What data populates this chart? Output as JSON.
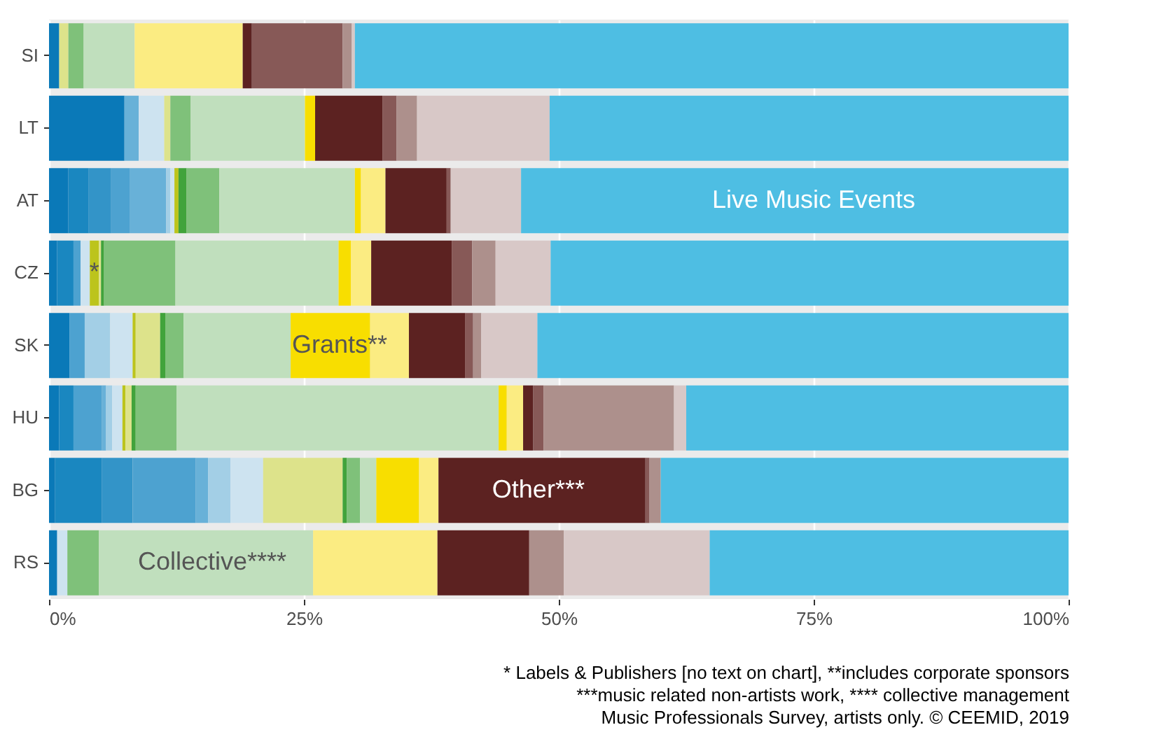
{
  "chart_data": {
    "type": "bar",
    "orientation": "horizontal",
    "stacked": true,
    "categories": [
      "SI",
      "LT",
      "AT",
      "CZ",
      "SK",
      "HU",
      "BG",
      "RS"
    ],
    "series": [
      {
        "color": "#0a79b8",
        "values": [
          1.0,
          7.4,
          1.9,
          0.8,
          2.0,
          1.0,
          0.6,
          0.8
        ]
      },
      {
        "color": "#1a87c0",
        "values": [
          null,
          null,
          2.0,
          1.6,
          null,
          1.4,
          4.6,
          null
        ]
      },
      {
        "color": "#3394c8",
        "values": [
          null,
          null,
          2.2,
          null,
          null,
          null,
          3.0,
          null
        ]
      },
      {
        "color": "#4da2d0",
        "values": [
          null,
          null,
          1.8,
          0.7,
          1.5,
          2.8,
          6.2,
          null
        ]
      },
      {
        "color": "#68b1d8",
        "values": [
          null,
          1.4,
          3.6,
          null,
          null,
          0.4,
          1.2,
          null
        ]
      },
      {
        "color": "#a3cfe6",
        "values": [
          null,
          null,
          0.4,
          null,
          2.5,
          0.6,
          2.2,
          null
        ]
      },
      {
        "color": "#cde3f0",
        "values": [
          null,
          2.5,
          0.4,
          0.9,
          2.2,
          1.0,
          3.2,
          1.0
        ]
      },
      {
        "color": "#bcc41c",
        "values": [
          null,
          null,
          0.4,
          0.9,
          0.3,
          0.3,
          null,
          null
        ]
      },
      {
        "color": "#dde38b",
        "values": [
          0.9,
          0.6,
          null,
          0.2,
          2.4,
          0.6,
          7.8,
          null
        ]
      },
      {
        "color": "#41a33b",
        "values": [
          null,
          null,
          0.8,
          0.3,
          0.5,
          0.4,
          0.4,
          null
        ]
      },
      {
        "color": "#7fc17a",
        "values": [
          1.5,
          2.0,
          3.2,
          7.0,
          1.8,
          4.0,
          1.3,
          3.1
        ]
      },
      {
        "color": "#c0dfbd",
        "values": [
          5.0,
          11.2,
          13.3,
          16.0,
          10.5,
          31.6,
          1.6,
          21.0
        ]
      },
      {
        "color": "#f8de00",
        "values": [
          null,
          1.0,
          0.6,
          1.2,
          7.8,
          0.8,
          4.2,
          null
        ]
      },
      {
        "color": "#fbec82",
        "values": [
          10.6,
          null,
          2.4,
          2.0,
          3.8,
          1.6,
          1.9,
          12.2
        ]
      },
      {
        "color": "#5c2221",
        "values": [
          0.9,
          6.6,
          6.0,
          7.9,
          5.5,
          1.0,
          20.3,
          9.0
        ]
      },
      {
        "color": "#875957",
        "values": [
          8.9,
          1.4,
          0.4,
          2.0,
          0.8,
          1.0,
          0.4,
          null
        ]
      },
      {
        "color": "#ad908c",
        "values": [
          0.9,
          2.0,
          null,
          2.3,
          0.8,
          12.8,
          1.1,
          3.4
        ]
      },
      {
        "color": "#d8c8c7",
        "values": [
          0.3,
          13.0,
          6.9,
          5.4,
          5.5,
          1.2,
          null,
          14.3
        ]
      },
      {
        "color": "#4ebee3",
        "values": [
          70.0,
          50.9,
          53.7,
          50.8,
          52.1,
          37.5,
          40.0,
          35.2
        ]
      }
    ],
    "xlim": [
      0,
      100
    ],
    "xticks": [
      {
        "value": 0,
        "label": "0%"
      },
      {
        "value": 25,
        "label": "25%"
      },
      {
        "value": 50,
        "label": "50%"
      },
      {
        "value": 75,
        "label": "75%"
      },
      {
        "value": 100,
        "label": "100%"
      }
    ],
    "grid": "x",
    "annotations": [
      {
        "text": "Live Music Events",
        "x": 75,
        "y": "AT"
      },
      {
        "text": "Grants**",
        "x": 28.5,
        "y": "SK"
      },
      {
        "text": "Other***",
        "x": 48,
        "y": "BG"
      },
      {
        "text": "Collective****",
        "x": 16,
        "y": "RS"
      },
      {
        "text": "*",
        "x": 4.45,
        "y": "CZ"
      },
      "* Labels & Publishers [no text on chart], **includes corporate sponsors",
      "***music related non-artists work, **** collective management",
      "Music Professionals Survey, artists only. © CEEMID, 2019"
    ]
  }
}
